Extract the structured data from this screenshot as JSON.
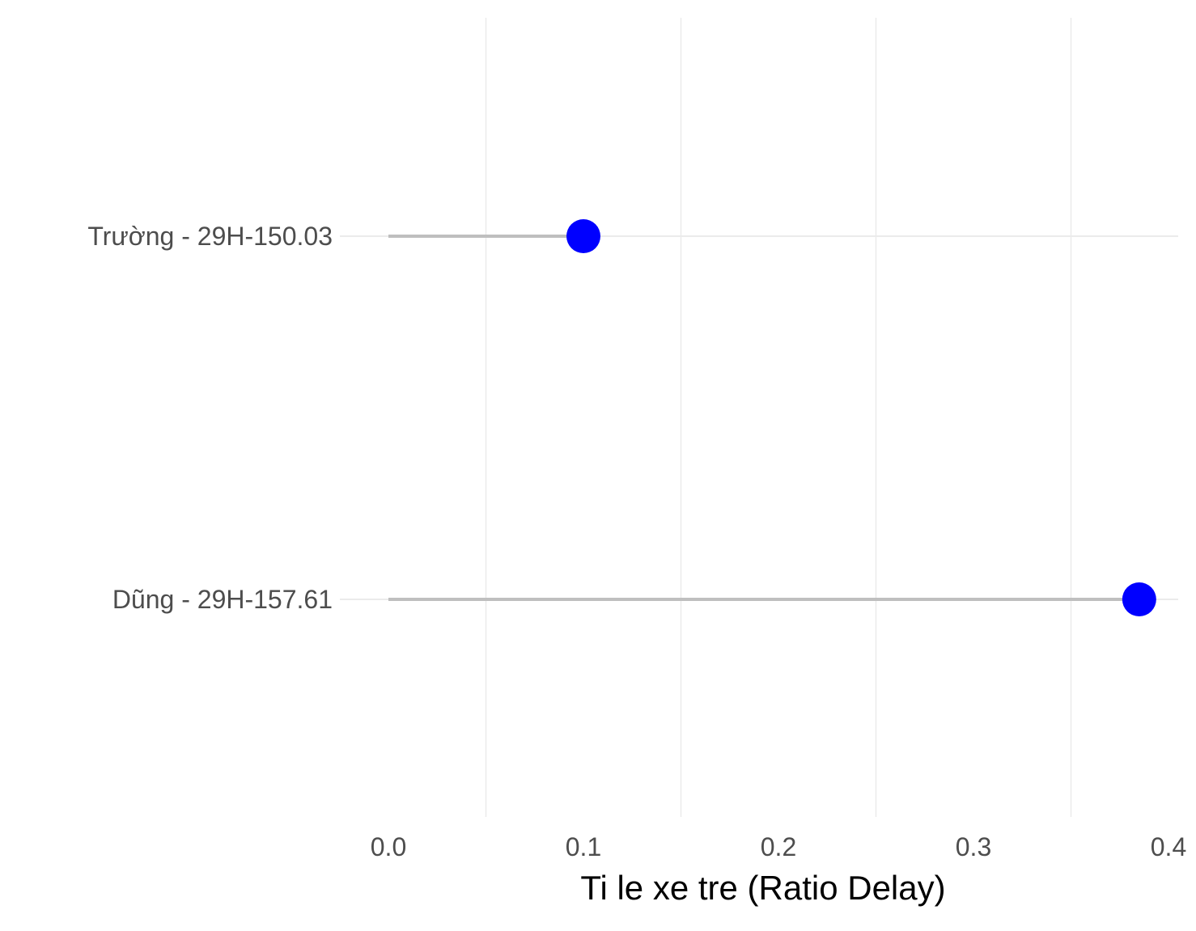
{
  "chart_data": {
    "type": "lollipop",
    "orientation": "horizontal",
    "categories": [
      "Trường - 29H-150.03",
      "Dũng - 29H-157.61"
    ],
    "values": [
      0.1,
      0.385
    ],
    "xlabel": "Ti le xe tre (Ratio Delay)",
    "ylabel": "",
    "title": "",
    "xlim": [
      0.0,
      0.4
    ],
    "x_ticks": [
      0.0,
      0.1,
      0.2,
      0.3,
      0.4
    ],
    "x_tick_labels": [
      "0.0",
      "0.1",
      "0.2",
      "0.3",
      "0.4"
    ],
    "grid": true,
    "legend": "none",
    "colors": {
      "point": "#0000ff",
      "stem": "#bfbfbf",
      "grid": "#ebebeb",
      "tick_text": "#4d4d4d",
      "axis_title": "#000000"
    }
  }
}
